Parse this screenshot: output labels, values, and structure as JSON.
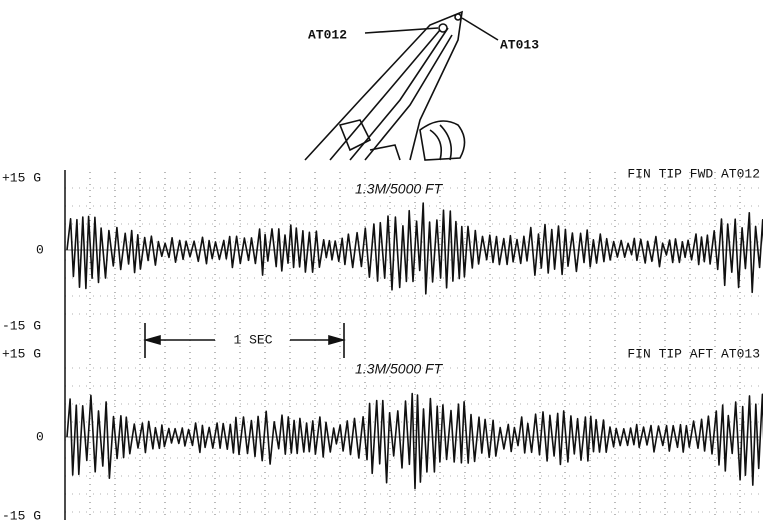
{
  "figure": {
    "sketch_labels": [
      "AT012",
      "AT013"
    ],
    "time_scale": "1 SEC",
    "panels": [
      {
        "title": "FIN TIP FWD AT012",
        "condition": "1.3M/5000 FT",
        "axis_labels": [
          "+15 G",
          "0",
          "-15 G"
        ]
      },
      {
        "title": "FIN TIP AFT AT013",
        "condition": "1.3M/5000 FT",
        "axis_labels": [
          "+15 G",
          "0",
          "-15 G"
        ]
      }
    ]
  }
}
